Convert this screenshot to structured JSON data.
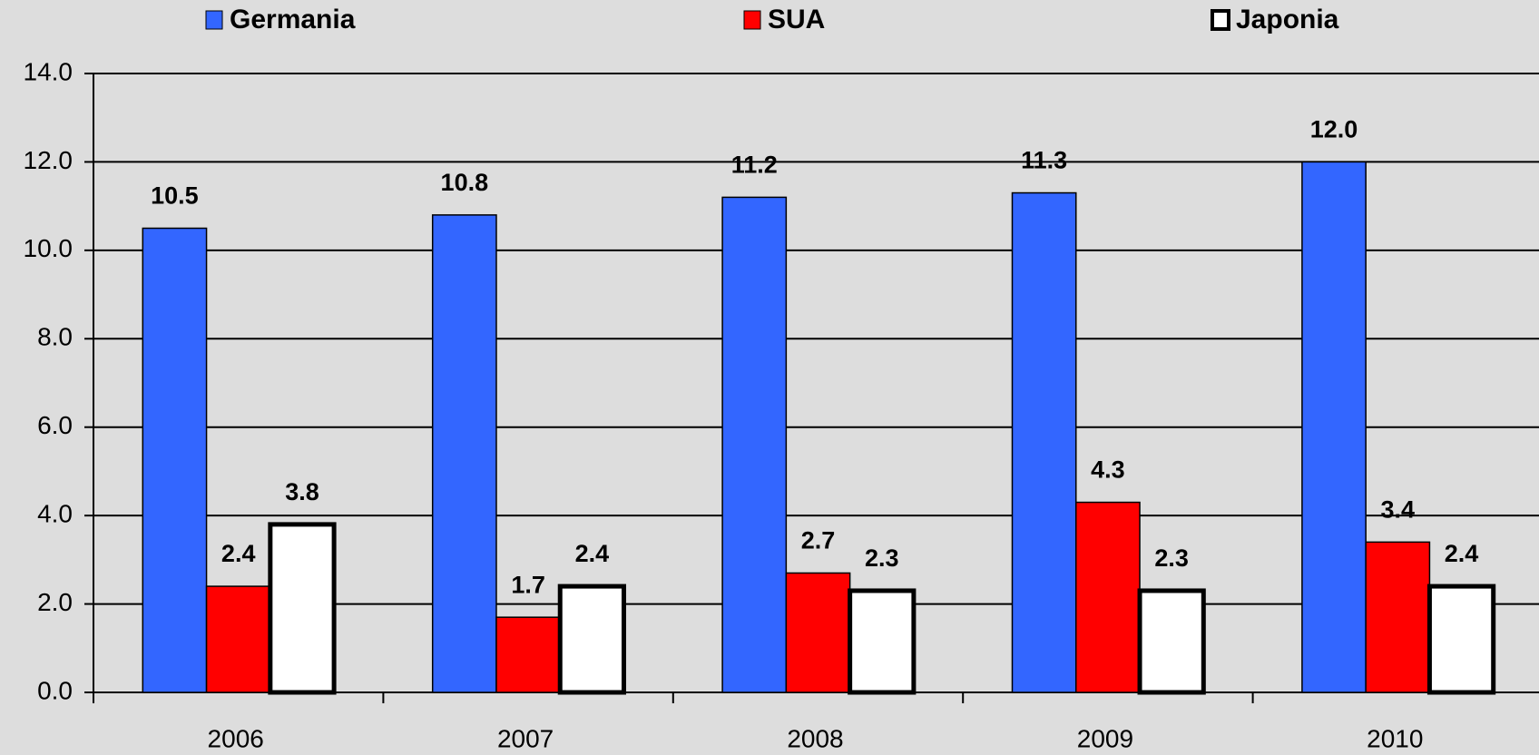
{
  "chart_data": {
    "type": "bar",
    "categories": [
      "2006",
      "2007",
      "2008",
      "2009",
      "2010"
    ],
    "series": [
      {
        "name": "Germania",
        "color": "#3366ff",
        "values": [
          10.5,
          10.8,
          11.2,
          11.3,
          12.0
        ],
        "value_labels": [
          "10.5",
          "10.8",
          "11.2",
          "11.3",
          "12.0"
        ]
      },
      {
        "name": "SUA",
        "color": "#ff0000",
        "values": [
          2.4,
          1.7,
          2.7,
          4.3,
          3.4
        ],
        "value_labels": [
          "2.4",
          "1.7",
          "2.7",
          "4.3",
          "3.4"
        ]
      },
      {
        "name": "Japonia",
        "color": "#ffffff",
        "values": [
          3.8,
          2.4,
          2.3,
          2.3,
          2.4
        ],
        "value_labels": [
          "3.8",
          "2.4",
          "2.3",
          "2.3",
          "2.4"
        ]
      }
    ],
    "ylim": [
      0,
      14
    ],
    "yticks": [
      {
        "value": 0,
        "label": "0.0"
      },
      {
        "value": 2,
        "label": "2.0"
      },
      {
        "value": 4,
        "label": "4.0"
      },
      {
        "value": 6,
        "label": "6.0"
      },
      {
        "value": 8,
        "label": "8.0"
      },
      {
        "value": 10,
        "label": "10.0"
      },
      {
        "value": 12,
        "label": "12.0"
      },
      {
        "value": 14,
        "label": "14.0"
      }
    ],
    "grid": true,
    "legend": "top"
  }
}
